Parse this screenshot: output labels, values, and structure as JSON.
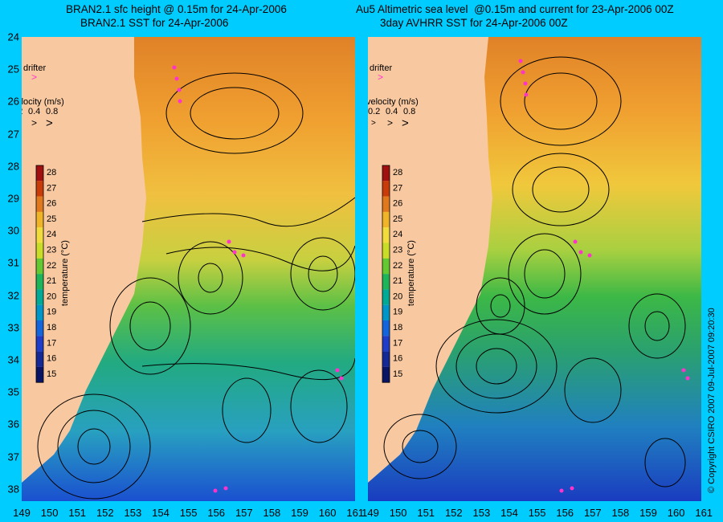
{
  "panels": [
    {
      "title_line1": "BRAN2.1 sfc height @ 0.15m for 24-Apr-2006",
      "title_line2": "BRAN2.1 SST for 24-Apr-2006"
    },
    {
      "title_line1": "Au5 Altimetric sea level  @0.15m and current for 23-Apr-2006 00Z",
      "title_line2": "3day AVHRR SST for 24-Apr-2006 00Z"
    }
  ],
  "legend": {
    "drifter_label": "drifter",
    "velocity_label": "velocity (m/s)",
    "velocity_values": [
      "0.2",
      "0.4",
      "0.8"
    ]
  },
  "colorbar": {
    "label": "temperature (°C)",
    "ticks": [
      "28",
      "27",
      "26",
      "25",
      "24",
      "23",
      "22",
      "21",
      "20",
      "19",
      "18",
      "17",
      "16",
      "15"
    ],
    "colors": [
      "#a01010",
      "#c83c0a",
      "#e0781e",
      "#f0b428",
      "#f0dc3c",
      "#c8dc28",
      "#64c832",
      "#1eb45a",
      "#00aa96",
      "#0096c8",
      "#1464dc",
      "#1e3cc8",
      "#142896",
      "#0a1464"
    ]
  },
  "axes": {
    "x_ticks": [
      "149",
      "150",
      "151",
      "152",
      "153",
      "154",
      "155",
      "156",
      "157",
      "158",
      "159",
      "160",
      "161"
    ],
    "y_ticks": [
      "24",
      "25",
      "26",
      "27",
      "28",
      "29",
      "30",
      "31",
      "32",
      "33",
      "34",
      "35",
      "36",
      "37",
      "38"
    ],
    "x_ticks_right": [
      "149",
      "150",
      "151",
      "152",
      "153",
      "154",
      "155",
      "156",
      "157",
      "158",
      "159",
      "160",
      "161"
    ]
  },
  "copyright": "© Copyright CSIRO 2007    09-Jul-2007 09:20:30",
  "colors": {
    "background": "#00ccff",
    "land": "#f8c8a0",
    "drifter": "#ff33cc"
  }
}
